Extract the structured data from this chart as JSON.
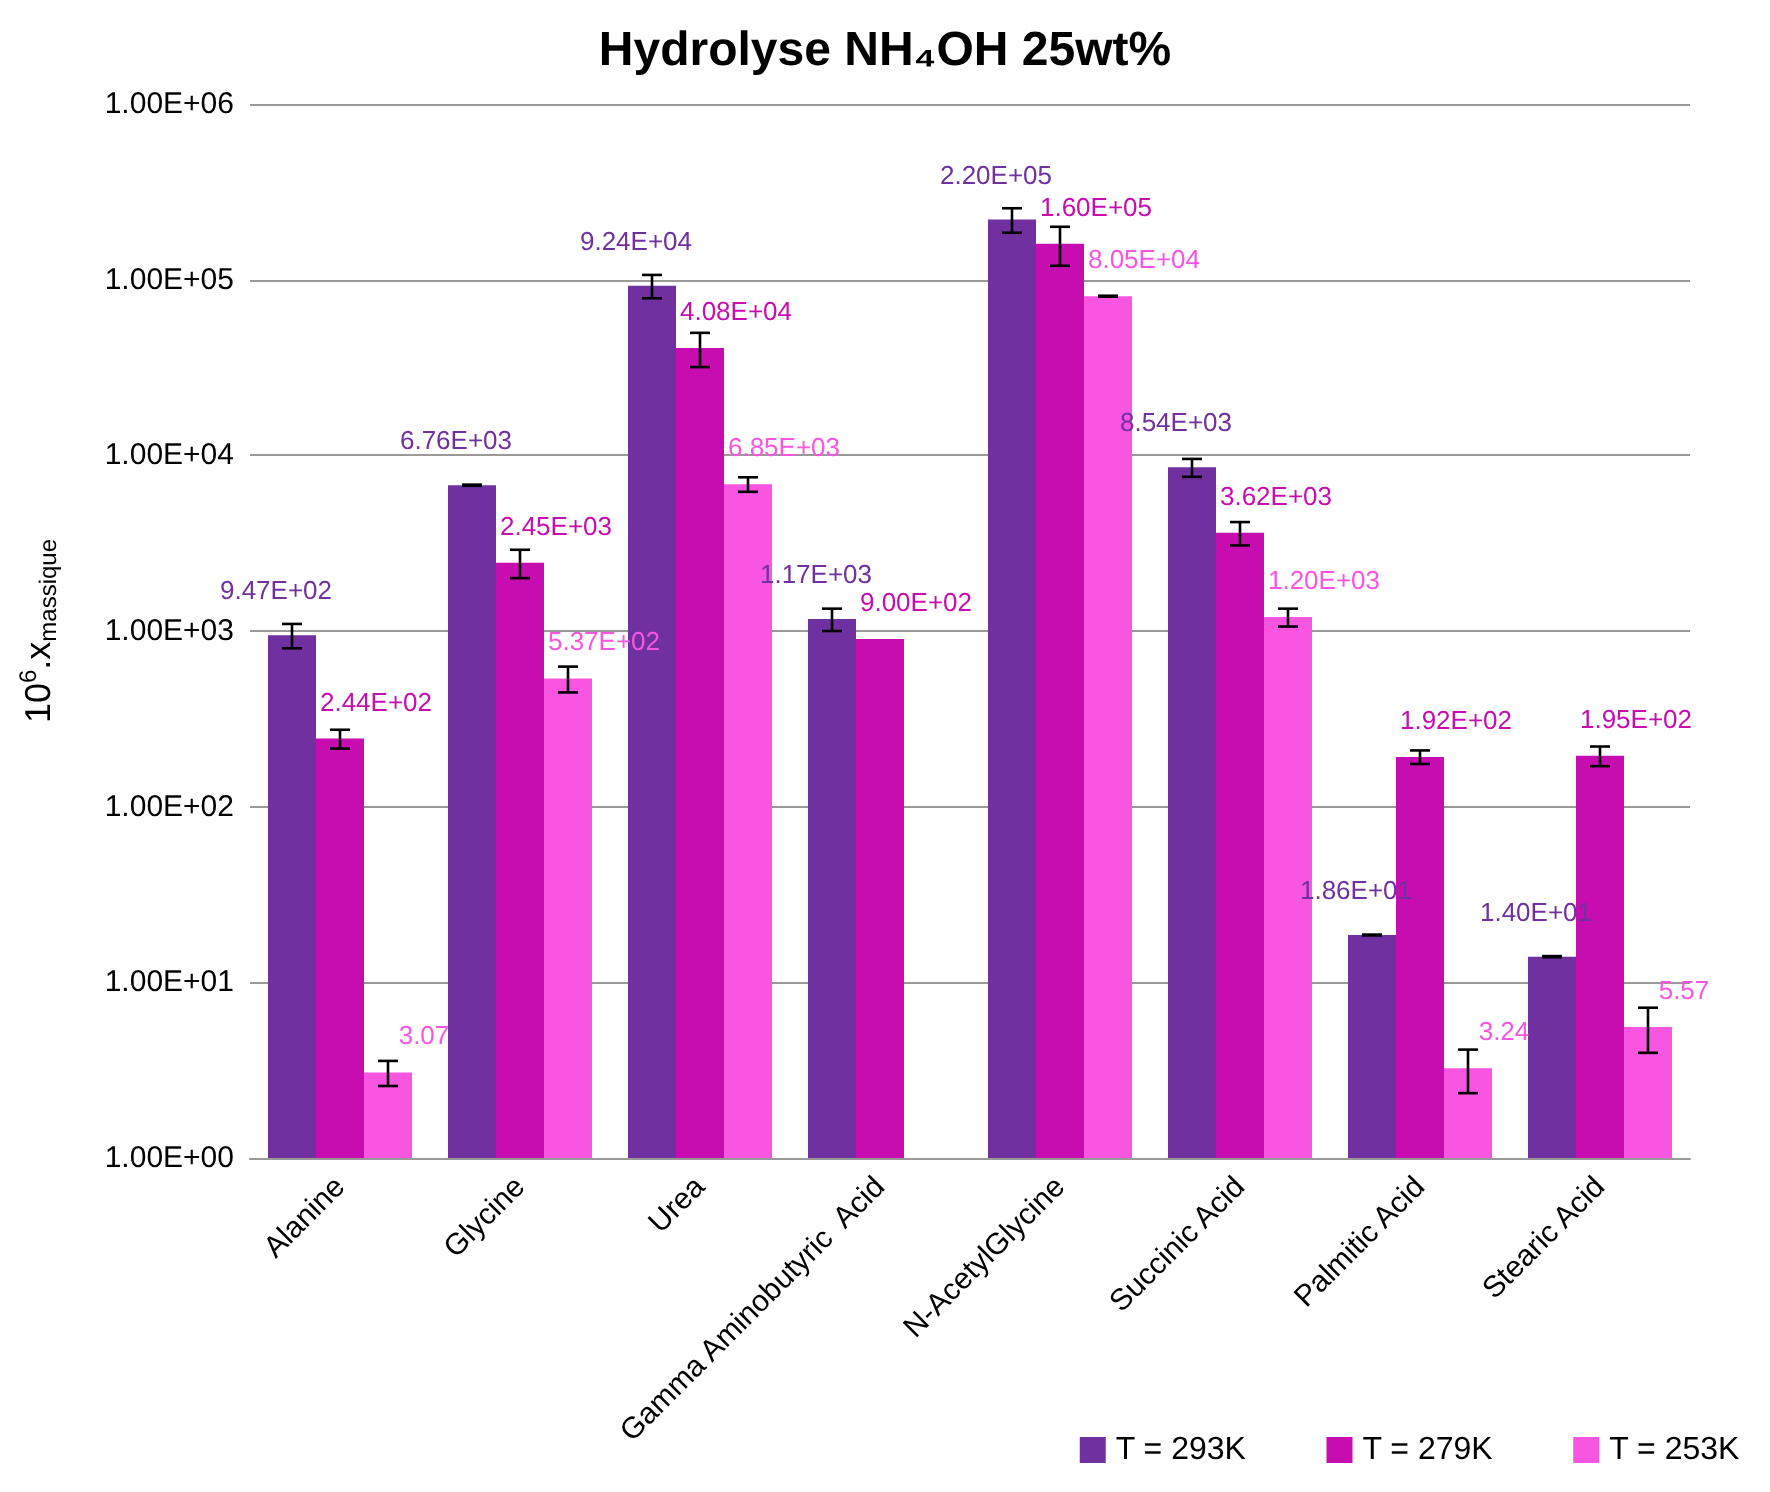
{
  "chart_data": {
    "type": "bar",
    "title": "Hydrolyse NH₄OH 25wt%",
    "ylabel": "10$^{6}$.x$_{massique}$",
    "categories": [
      "Alanine",
      "Glycine",
      "Urea",
      "Gamma Aminobutyric  Acid",
      "N-AcetylGlycine",
      "Succinic Acid",
      "Palmitic Acid",
      "Stearic Acid"
    ],
    "series": [
      {
        "name": "T = 293K",
        "color": "#7030a0",
        "values": [
          947,
          6760,
          92400,
          1170,
          220000,
          8540,
          18.6,
          14.0
        ],
        "errors": [
          150,
          50,
          14000,
          170,
          35000,
          1000,
          0.1,
          0.1
        ],
        "value_labels": [
          "9.47E+02",
          "6.76E+03",
          "9.24E+04",
          "1.17E+03",
          "2.20E+05",
          "8.54E+03",
          "1.86E+01",
          "1.40E+01"
        ]
      },
      {
        "name": "T = 279K",
        "color": "#c70daf",
        "values": [
          244,
          2450,
          40800,
          900,
          160000,
          3620,
          192,
          195
        ],
        "errors": [
          30,
          450,
          9000,
          null,
          40000,
          550,
          17,
          25
        ],
        "value_labels": [
          "2.44E+02",
          "2.45E+03",
          "4.08E+04",
          "9.00E+02",
          "1.60E+05",
          "3.62E+03",
          "1.92E+02",
          "1.95E+02"
        ]
      },
      {
        "name": "T = 253K",
        "color": "#f855e0",
        "values": [
          3.07,
          537,
          6850,
          null,
          80500,
          1200,
          3.24,
          5.57
        ],
        "errors": [
          0.5,
          90,
          650,
          null,
          500,
          140,
          0.9,
          1.6
        ],
        "value_labels": [
          "3.07",
          "5.37E+02",
          "6.85E+03",
          null,
          "8.05E+04",
          "1.20E+03",
          "3.24",
          "5.57"
        ]
      }
    ],
    "log": true,
    "ylim": [
      1,
      1000000
    ],
    "yticks": [
      {
        "value": 1,
        "label": "1.00E+00"
      },
      {
        "value": 10,
        "label": "1.00E+01"
      },
      {
        "value": 100,
        "label": "1.00E+02"
      },
      {
        "value": 1000,
        "label": "1.00E+03"
      },
      {
        "value": 10000,
        "label": "1.00E+04"
      },
      {
        "value": 100000,
        "label": "1.00E+05"
      },
      {
        "value": 1000000,
        "label": "1.00E+06"
      }
    ],
    "grid": "y",
    "legend": "bottom right"
  }
}
